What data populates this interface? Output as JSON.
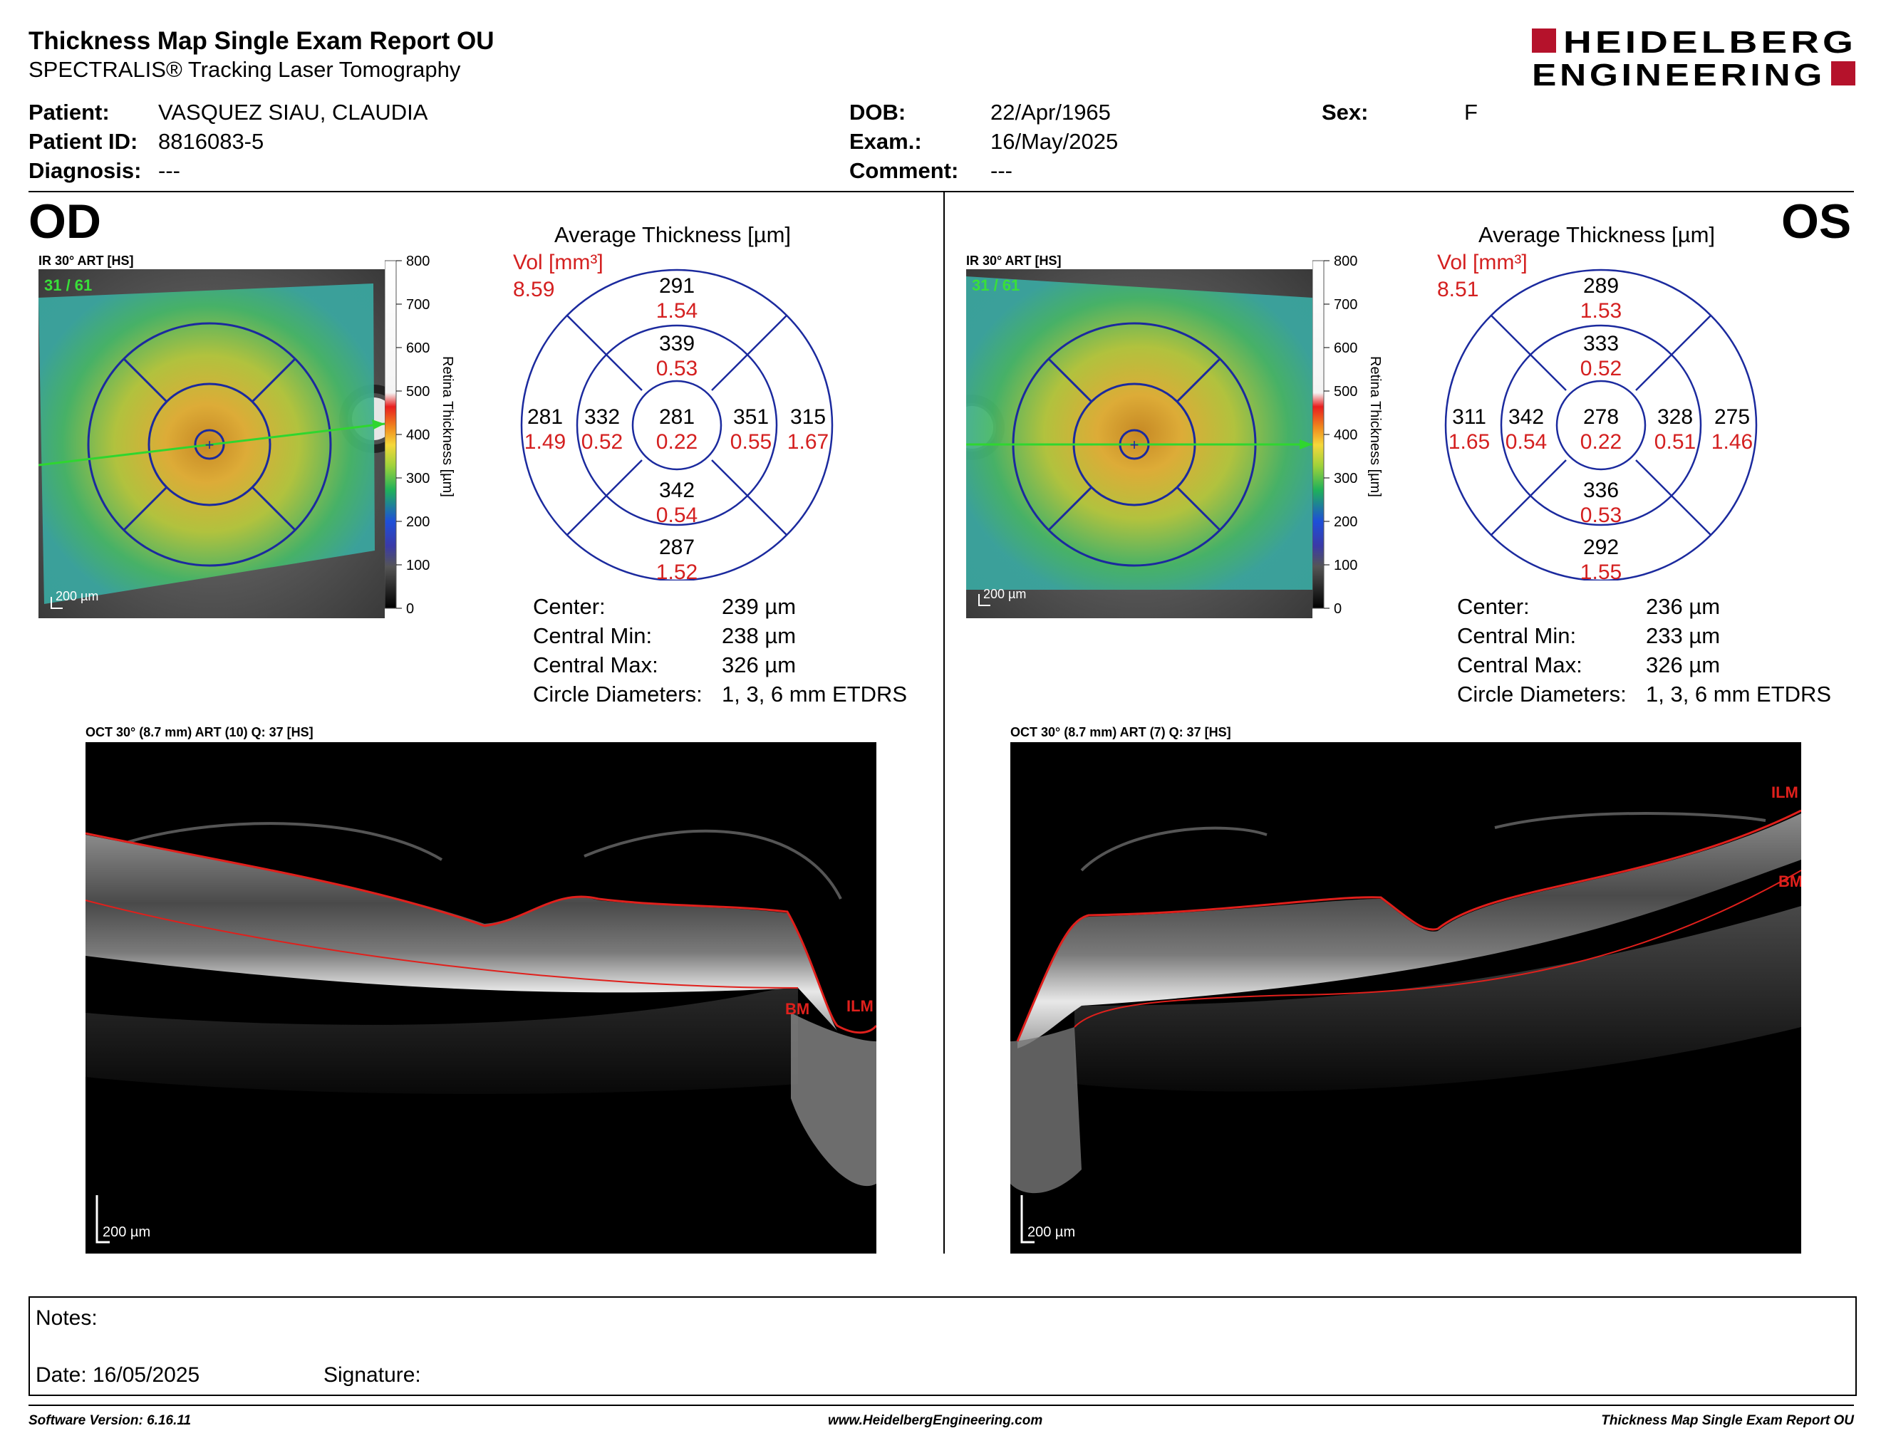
{
  "header": {
    "title": "Thickness Map Single Exam Report OU",
    "subtitle": "SPECTRALIS® Tracking Laser Tomography",
    "logo_line1": "HEIDELBERG",
    "logo_line2": "ENGINEERING"
  },
  "patient": {
    "patient_label": "Patient:",
    "patient_value": "VASQUEZ SIAU, CLAUDIA",
    "id_label": "Patient ID:",
    "id_value": "8816083-5",
    "diagnosis_label": "Diagnosis:",
    "diagnosis_value": "---",
    "dob_label": "DOB:",
    "dob_value": "22/Apr/1965",
    "exam_label": "Exam.:",
    "exam_value": "16/May/2025",
    "comment_label": "Comment:",
    "comment_value": "---",
    "sex_label": "Sex:",
    "sex_value": "F"
  },
  "colorbar": {
    "ticks": [
      "800",
      "700",
      "600",
      "500",
      "400",
      "300",
      "200",
      "100",
      "0"
    ],
    "title": "Retina Thickness [µm]"
  },
  "od": {
    "eye": "OD",
    "fundus_label": "IR 30° ART [HS]",
    "fundus_counter": "31 / 61",
    "fundus_scale": "200 µm",
    "avg_title": "Average Thickness [µm]",
    "vol_label": "Vol [mm³]",
    "vol_total": "8.59",
    "sectors": {
      "outer_sup_t": "291",
      "outer_sup_v": "1.54",
      "inner_sup_t": "339",
      "inner_sup_v": "0.53",
      "outer_temp_t": "281",
      "outer_temp_v": "1.49",
      "inner_temp_t": "332",
      "inner_temp_v": "0.52",
      "center_t": "281",
      "center_v": "0.22",
      "inner_nas_t": "351",
      "inner_nas_v": "0.55",
      "outer_nas_t": "315",
      "outer_nas_v": "1.67",
      "inner_inf_t": "342",
      "inner_inf_v": "0.54",
      "outer_inf_t": "287",
      "outer_inf_v": "1.52"
    },
    "center_label": "Center:",
    "center_value": "239 µm",
    "cmin_label": "Central Min:",
    "cmin_value": "238 µm",
    "cmax_label": "Central Max:",
    "cmax_value": "326 µm",
    "diam_label": "Circle Diameters:",
    "diam_value": "1, 3, 6 mm ETDRS",
    "oct_label": "OCT 30° (8.7 mm) ART (10) Q: 37 [HS]",
    "oct_scale": "200 µm",
    "bm_label": "BM",
    "ilm_label": "ILM"
  },
  "os": {
    "eye": "OS",
    "fundus_label": "IR 30° ART [HS]",
    "fundus_counter": "31 / 61",
    "fundus_scale": "200 µm",
    "avg_title": "Average Thickness [µm]",
    "vol_label": "Vol [mm³]",
    "vol_total": "8.51",
    "sectors": {
      "outer_sup_t": "289",
      "outer_sup_v": "1.53",
      "inner_sup_t": "333",
      "inner_sup_v": "0.52",
      "outer_temp_t": "311",
      "outer_temp_v": "1.65",
      "inner_temp_t": "342",
      "inner_temp_v": "0.54",
      "center_t": "278",
      "center_v": "0.22",
      "inner_nas_t": "328",
      "inner_nas_v": "0.51",
      "outer_nas_t": "275",
      "outer_nas_v": "1.46",
      "inner_inf_t": "336",
      "inner_inf_v": "0.53",
      "outer_inf_t": "292",
      "outer_inf_v": "1.55"
    },
    "center_label": "Center:",
    "center_value": "236 µm",
    "cmin_label": "Central Min:",
    "cmin_value": "233 µm",
    "cmax_label": "Central Max:",
    "cmax_value": "326 µm",
    "diam_label": "Circle Diameters:",
    "diam_value": "1, 3, 6 mm ETDRS",
    "oct_label": "OCT 30° (8.7 mm) ART (7) Q: 37 [HS]",
    "oct_scale": "200 µm",
    "bm_label": "BM",
    "ilm_label": "ILM"
  },
  "notes": {
    "notes_label": "Notes:",
    "date_label": "Date: 16/05/2025",
    "signature_label": "Signature:"
  },
  "footer": {
    "software": "Software Version: 6.16.11",
    "website": "www.HeidelbergEngineering.com",
    "report": "Thickness Map Single Exam Report OU"
  },
  "colors": {
    "accent_red": "#c8102e",
    "grid_blue": "#1b2a9e",
    "segment_red": "#e0201c",
    "volume_red": "#d42020"
  }
}
